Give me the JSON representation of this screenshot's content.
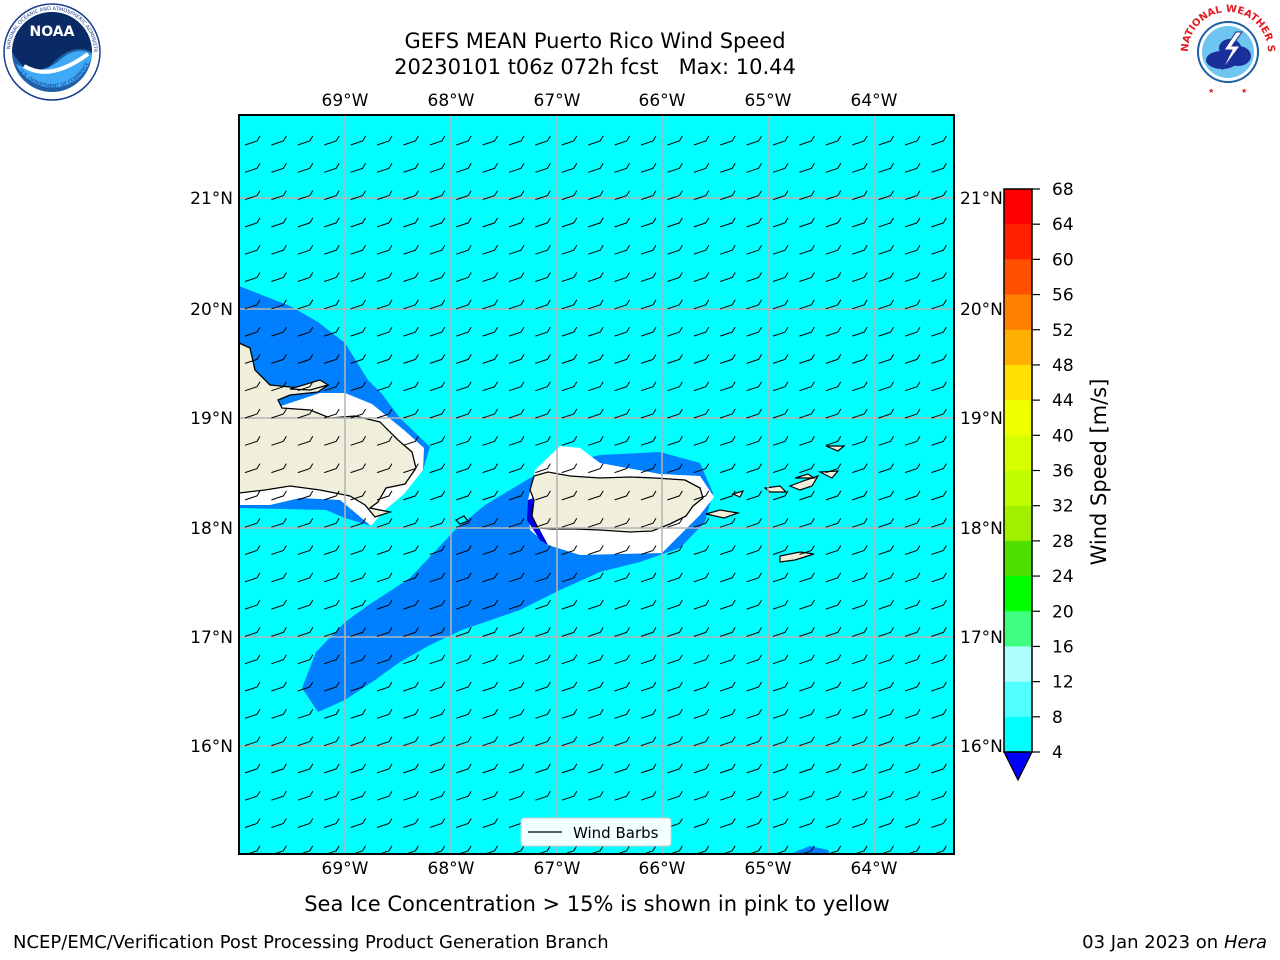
{
  "header": {
    "title_line1": "GEFS MEAN Puerto Rico Wind Speed",
    "title_line2": "20230101 t06z 072h fcst   Max: 10.44"
  },
  "logos": {
    "left": {
      "text": "NOAA",
      "ring_text": "NATIONAL OCEANIC AND ATMOSPHERIC ADMINISTRATION",
      "ring_text_bottom": "U.S. DEPARTMENT OF COMMERCE"
    },
    "right": {
      "ring_text": "NATIONAL WEATHER SERVICE"
    }
  },
  "map": {
    "lon_labels": [
      "69°W",
      "68°W",
      "67°W",
      "66°W",
      "65°W",
      "64°W"
    ],
    "lat_labels": [
      "21°N",
      "20°N",
      "19°N",
      "18°N",
      "17°N",
      "16°N"
    ],
    "legend_label": "Wind Barbs",
    "colors": {
      "ocean": "#00ffff",
      "band_4_8": "#0080ff",
      "land": "#efefdc",
      "below_4": "#0000e0"
    }
  },
  "colorbar": {
    "label": "Wind Speed [m/s]",
    "ticks": [
      "68",
      "64",
      "60",
      "56",
      "52",
      "48",
      "44",
      "40",
      "36",
      "32",
      "28",
      "24",
      "20",
      "16",
      "12",
      "8",
      "4"
    ],
    "colors": [
      "#ff0000",
      "#ff2000",
      "#ff5000",
      "#ff8000",
      "#ffb000",
      "#ffe000",
      "#f0ff00",
      "#d8ff00",
      "#c0ff00",
      "#a0f000",
      "#50e000",
      "#00ff00",
      "#40ff80",
      "#b0ffff",
      "#50ffff",
      "#00ffff",
      "#0080ff"
    ]
  },
  "caption": "Sea Ice Concentration > 15% is shown in pink to yellow",
  "footer": {
    "left": "NCEP/EMC/Verification Post Processing Product Generation Branch",
    "right_date": "03 Jan 2023 on ",
    "right_host": "Hera"
  }
}
